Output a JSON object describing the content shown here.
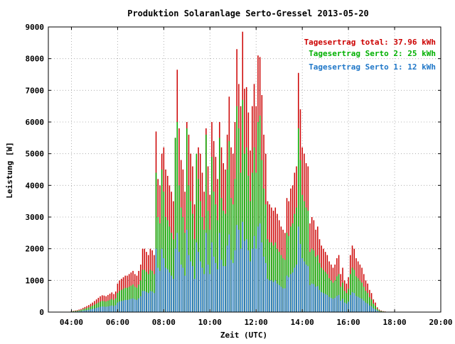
{
  "chart_data": {
    "type": "bar",
    "title": "Produktion Solaranlage Serto-Gressel 2013-05-20",
    "xlabel": "Zeit (UTC)",
    "ylabel": "Leistung [W]",
    "xlim": [
      3.0,
      20.0
    ],
    "ylim": [
      0,
      9000
    ],
    "x_ticks": [
      "04:00",
      "06:00",
      "08:00",
      "10:00",
      "12:00",
      "14:00",
      "16:00",
      "18:00",
      "20:00"
    ],
    "y_ticks": [
      "0",
      "1000",
      "2000",
      "3000",
      "4000",
      "5000",
      "6000",
      "7000",
      "8000",
      "9000"
    ],
    "grid": true,
    "legend_position": "top-right",
    "legend": [
      {
        "label": "Tagesertrag total: 37.96 kWh",
        "color": "#cc0000"
      },
      {
        "label": "Tagesertrag Serto 2: 25 kWh",
        "color": "#00b000"
      },
      {
        "label": "Tagesertrag Serto 1: 12 kWh",
        "color": "#1f77c8"
      }
    ],
    "series_colors": {
      "total": "#cc0000",
      "serto2": "#00b000",
      "serto1": "#1f77c8"
    },
    "time": [
      "04:00",
      "04:05",
      "04:10",
      "04:15",
      "04:20",
      "04:25",
      "04:30",
      "04:35",
      "04:40",
      "04:45",
      "04:50",
      "04:55",
      "05:00",
      "05:05",
      "05:10",
      "05:15",
      "05:20",
      "05:25",
      "05:30",
      "05:35",
      "05:40",
      "05:45",
      "05:50",
      "05:55",
      "06:00",
      "06:05",
      "06:10",
      "06:15",
      "06:20",
      "06:25",
      "06:30",
      "06:35",
      "06:40",
      "06:45",
      "06:50",
      "06:55",
      "07:00",
      "07:05",
      "07:10",
      "07:15",
      "07:20",
      "07:25",
      "07:30",
      "07:35",
      "07:40",
      "07:45",
      "07:50",
      "07:55",
      "08:00",
      "08:05",
      "08:10",
      "08:15",
      "08:20",
      "08:25",
      "08:30",
      "08:35",
      "08:40",
      "08:45",
      "08:50",
      "08:55",
      "09:00",
      "09:05",
      "09:10",
      "09:15",
      "09:20",
      "09:25",
      "09:30",
      "09:35",
      "09:40",
      "09:45",
      "09:50",
      "09:55",
      "10:00",
      "10:05",
      "10:10",
      "10:15",
      "10:20",
      "10:25",
      "10:30",
      "10:35",
      "10:40",
      "10:45",
      "10:50",
      "10:55",
      "11:00",
      "11:05",
      "11:10",
      "11:15",
      "11:20",
      "11:25",
      "11:30",
      "11:35",
      "11:40",
      "11:45",
      "11:50",
      "11:55",
      "12:00",
      "12:05",
      "12:10",
      "12:15",
      "12:20",
      "12:25",
      "12:30",
      "12:35",
      "12:40",
      "12:45",
      "12:50",
      "12:55",
      "13:00",
      "13:05",
      "13:10",
      "13:15",
      "13:20",
      "13:25",
      "13:30",
      "13:35",
      "13:40",
      "13:45",
      "13:50",
      "13:55",
      "14:00",
      "14:05",
      "14:10",
      "14:15",
      "14:20",
      "14:25",
      "14:30",
      "14:35",
      "14:40",
      "14:45",
      "14:50",
      "14:55",
      "15:00",
      "15:05",
      "15:10",
      "15:15",
      "15:20",
      "15:25",
      "15:30",
      "15:35",
      "15:40",
      "15:45",
      "15:50",
      "15:55",
      "16:00",
      "16:05",
      "16:10",
      "16:15",
      "16:20",
      "16:25",
      "16:30",
      "16:35",
      "16:40",
      "16:45",
      "16:50",
      "16:55",
      "17:00",
      "17:05",
      "17:10",
      "17:15",
      "17:20",
      "17:25",
      "17:30",
      "17:35",
      "17:40",
      "17:45",
      "17:50",
      "17:55",
      "18:00",
      "18:05",
      "18:10"
    ],
    "series": [
      {
        "name": "Tagesertrag total: 37.96 kWh",
        "key": "total",
        "values": [
          30,
          40,
          50,
          60,
          80,
          100,
          130,
          160,
          190,
          220,
          260,
          300,
          350,
          400,
          450,
          500,
          530,
          520,
          500,
          540,
          580,
          620,
          570,
          650,
          900,
          1000,
          1050,
          1100,
          1150,
          1150,
          1200,
          1250,
          1300,
          1200,
          1150,
          1300,
          1500,
          2000,
          2000,
          1900,
          1800,
          2000,
          1950,
          1800,
          5700,
          4200,
          4000,
          5000,
          5200,
          4500,
          4300,
          4000,
          3800,
          3500,
          5500,
          7650,
          5800,
          4800,
          4500,
          3800,
          6000,
          5600,
          5000,
          4600,
          3400,
          4800,
          5200,
          5000,
          4400,
          3800,
          5800,
          4600,
          3700,
          6000,
          5400,
          4900,
          4200,
          6000,
          5200,
          4700,
          4500,
          5600,
          6800,
          5200,
          5000,
          6000,
          8300,
          7200,
          6500,
          8850,
          7050,
          7100,
          6300,
          5100,
          6500,
          7200,
          6500,
          8100,
          8050,
          6850,
          5600,
          5000,
          3500,
          3400,
          3300,
          3200,
          3300,
          3100,
          2900,
          2700,
          2600,
          2500,
          3600,
          3500,
          3900,
          4000,
          4400,
          4600,
          7550,
          6400,
          5200,
          5000,
          4700,
          4600,
          2800,
          3000,
          2900,
          2600,
          2700,
          2300,
          2100,
          2000,
          1900,
          1800,
          1600,
          1500,
          1400,
          1500,
          1700,
          1800,
          1200,
          1400,
          1000,
          900,
          1100,
          1800,
          2100,
          2000,
          1700,
          1600,
          1500,
          1400,
          1200,
          1000,
          900,
          700,
          600,
          400,
          300,
          150,
          80,
          50,
          30,
          20,
          0
        ]
      },
      {
        "name": "Tagesertrag Serto 2: 25 kWh",
        "key": "serto2",
        "values": [
          20,
          27,
          33,
          40,
          53,
          67,
          87,
          107,
          127,
          147,
          173,
          200,
          233,
          267,
          300,
          333,
          353,
          347,
          333,
          360,
          387,
          413,
          380,
          433,
          600,
          667,
          700,
          733,
          767,
          767,
          800,
          833,
          867,
          800,
          767,
          867,
          1000,
          1333,
          1333,
          1267,
          1200,
          1333,
          1300,
          1200,
          4400,
          3000,
          2800,
          4500,
          3800,
          3000,
          2900,
          2700,
          2500,
          2300,
          5500,
          6000,
          4000,
          3300,
          3000,
          2500,
          5800,
          4000,
          3500,
          3100,
          2300,
          5000,
          4200,
          3500,
          3000,
          2600,
          5600,
          3200,
          2600,
          4900,
          3800,
          3400,
          2900,
          5500,
          3600,
          3200,
          3100,
          4500,
          5400,
          3600,
          3400,
          4200,
          6500,
          5800,
          4400,
          6700,
          5000,
          5200,
          4300,
          3500,
          4400,
          5200,
          4400,
          6000,
          6200,
          4800,
          3900,
          3400,
          2300,
          2200,
          2200,
          2100,
          2200,
          2000,
          1900,
          1800,
          1700,
          1650,
          2500,
          2400,
          2700,
          2800,
          3100,
          3300,
          5800,
          4800,
          3700,
          3500,
          3300,
          3200,
          1900,
          2000,
          1950,
          1750,
          1800,
          1550,
          1400,
          1330,
          1270,
          1200,
          1070,
          1000,
          930,
          1000,
          1130,
          1200,
          800,
          930,
          670,
          600,
          730,
          1200,
          1400,
          1330,
          1130,
          1070,
          1000,
          930,
          800,
          667,
          600,
          467,
          400,
          267,
          200,
          100,
          53,
          33,
          20,
          13,
          0
        ]
      },
      {
        "name": "Tagesertrag Serto 1: 12 kWh",
        "key": "serto1",
        "values": [
          10,
          13,
          17,
          20,
          27,
          33,
          43,
          53,
          63,
          73,
          87,
          100,
          117,
          133,
          150,
          167,
          177,
          173,
          167,
          180,
          193,
          207,
          190,
          217,
          300,
          333,
          350,
          367,
          383,
          383,
          400,
          417,
          433,
          400,
          383,
          433,
          500,
          667,
          667,
          633,
          600,
          667,
          650,
          600,
          2000,
          1400,
          1300,
          2000,
          1700,
          1400,
          1350,
          1250,
          1150,
          1050,
          2000,
          2500,
          1900,
          1500,
          1400,
          1150,
          2600,
          1800,
          1600,
          1450,
          1050,
          2200,
          1900,
          1600,
          1400,
          1200,
          2500,
          1500,
          1200,
          2200,
          1750,
          1550,
          1350,
          2500,
          1650,
          1450,
          1450,
          2100,
          2450,
          1650,
          1550,
          1950,
          2750,
          2600,
          2000,
          2850,
          2250,
          2300,
          1950,
          1600,
          2000,
          2400,
          2000,
          2700,
          2800,
          2200,
          1750,
          1550,
          1050,
          1000,
          1000,
          950,
          1000,
          900,
          850,
          800,
          750,
          750,
          1150,
          1100,
          1200,
          1250,
          1400,
          1500,
          2700,
          2150,
          1700,
          1600,
          1500,
          1450,
          850,
          900,
          880,
          800,
          820,
          700,
          630,
          600,
          570,
          540,
          480,
          450,
          420,
          450,
          510,
          540,
          360,
          420,
          300,
          270,
          330,
          540,
          630,
          600,
          510,
          480,
          450,
          420,
          360,
          300,
          270,
          210,
          180,
          120,
          90,
          45,
          24,
          15,
          9,
          6,
          0
        ]
      }
    ]
  }
}
